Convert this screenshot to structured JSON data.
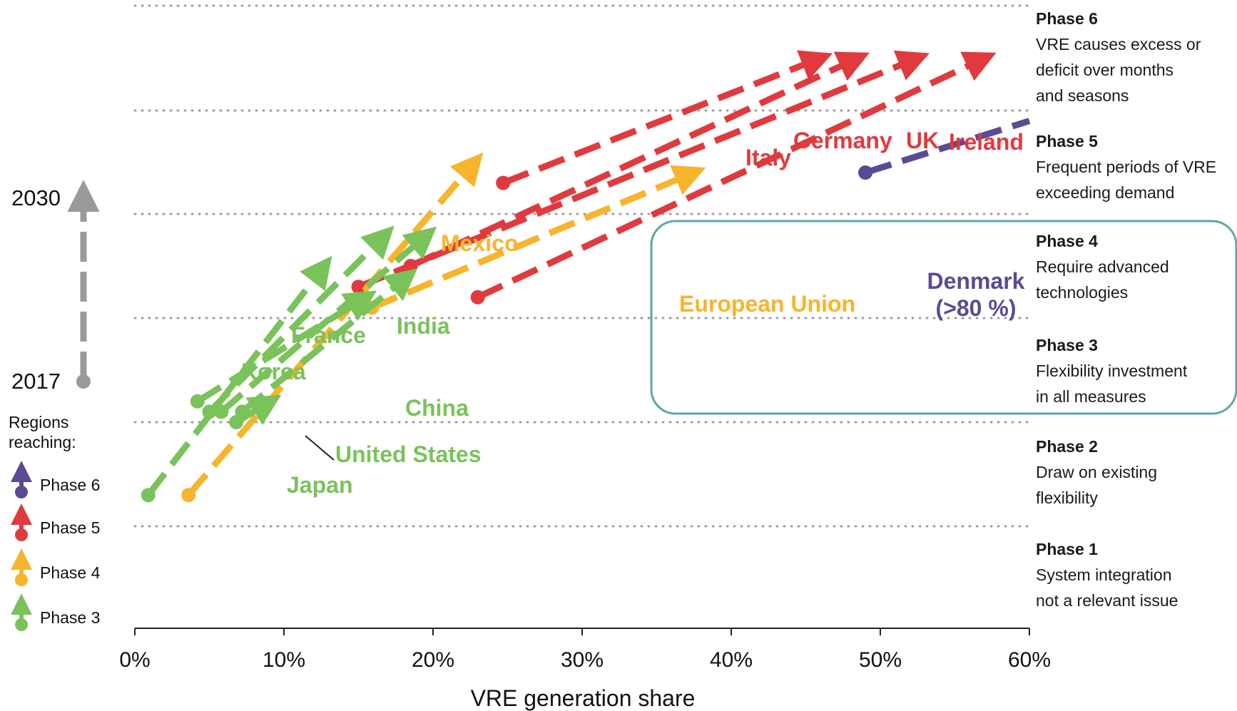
{
  "phases": [
    {
      "title": "Phase 6",
      "desc": "VRE causes excess or\ndeficit over months\nand seasons"
    },
    {
      "title": "Phase 5",
      "desc": "Frequent periods of VRE\nexceeding demand"
    },
    {
      "title": "Phase 4",
      "desc": "Require advanced\ntechnologies"
    },
    {
      "title": "Phase 3",
      "desc": "Flexibility investment\nin all measures"
    },
    {
      "title": "Phase 2",
      "desc": "Draw on existing\nflexibility"
    },
    {
      "title": "Phase 1",
      "desc": "System integration\nnot a relevant issue"
    }
  ],
  "time_axis": {
    "top": "2030",
    "bottom": "2017"
  },
  "legend": {
    "title": "Regions\nreaching:",
    "items": [
      {
        "label": "Phase 6",
        "color": "#5b4a94"
      },
      {
        "label": "Phase 5",
        "color": "#e03a3e"
      },
      {
        "label": "Phase 4",
        "color": "#f7b42c"
      },
      {
        "label": "Phase 3",
        "color": "#7ac25a"
      }
    ]
  },
  "chart_data": {
    "type": "line",
    "xlabel": "VRE generation share",
    "xlim": [
      0,
      60
    ],
    "x_ticks": [
      "0%",
      "10%",
      "20%",
      "30%",
      "40%",
      "50%",
      "60%"
    ],
    "y_scale": "VRE integration phase",
    "grid": "dotted horizontal phase boundaries",
    "highlight_box": {
      "x_from": 35,
      "x_to": 60,
      "y_from": 3,
      "y_to": 4.5,
      "color": "#5aa9a4"
    },
    "series": [
      {
        "name": "Italy",
        "phase_reached": 5,
        "color": "#e03a3e",
        "start": [
          24.7,
          4.3
        ],
        "end": [
          46.0,
          5.5
        ]
      },
      {
        "name": "Germany",
        "phase_reached": 5,
        "color": "#e03a3e",
        "start": [
          18.5,
          3.5
        ],
        "end": [
          48.5,
          5.5
        ]
      },
      {
        "name": "UK",
        "phase_reached": 5,
        "color": "#e03a3e",
        "start": [
          15.0,
          3.3
        ],
        "end": [
          52.5,
          5.5
        ]
      },
      {
        "name": "Ireland",
        "phase_reached": 5,
        "color": "#e03a3e",
        "start": [
          23.0,
          3.2
        ],
        "end": [
          57.0,
          5.5
        ]
      },
      {
        "name": "Denmark (>80 %)",
        "phase_reached": 6,
        "color": "#5b4a94",
        "start": [
          49.0,
          4.4
        ],
        "end": [
          60.0,
          4.9
        ]
      },
      {
        "name": "European Union",
        "phase_reached": 4,
        "color": "#f7b42c",
        "start": [
          15.9,
          3.1
        ],
        "end": [
          37.5,
          4.4
        ]
      },
      {
        "name": "Mexico",
        "phase_reached": 4,
        "color": "#f7b42c",
        "start": [
          3.6,
          1.3
        ],
        "end": [
          22.8,
          4.5
        ]
      },
      {
        "name": "France",
        "phase_reached": 3,
        "color": "#7ac25a",
        "start": [
          5.0,
          2.1
        ],
        "end": [
          16.8,
          3.8
        ]
      },
      {
        "name": "India",
        "phase_reached": 3,
        "color": "#7ac25a",
        "start": [
          5.8,
          2.1
        ],
        "end": [
          19.6,
          3.8
        ]
      },
      {
        "name": "Korea",
        "phase_reached": 3,
        "color": "#7ac25a",
        "start": [
          0.9,
          1.3
        ],
        "end": [
          12.7,
          3.5
        ]
      },
      {
        "name": "United States",
        "phase_reached": 3,
        "color": "#7ac25a",
        "start": [
          4.2,
          2.2
        ],
        "end": [
          15.5,
          3.2
        ]
      },
      {
        "name": "China",
        "phase_reached": 3,
        "color": "#7ac25a",
        "start": [
          7.2,
          2.1
        ],
        "end": [
          18.3,
          3.4
        ]
      },
      {
        "name": "Japan",
        "phase_reached": 3,
        "color": "#7ac25a",
        "start": [
          6.8,
          2.0
        ],
        "end": [
          9.1,
          2.2
        ]
      }
    ]
  }
}
